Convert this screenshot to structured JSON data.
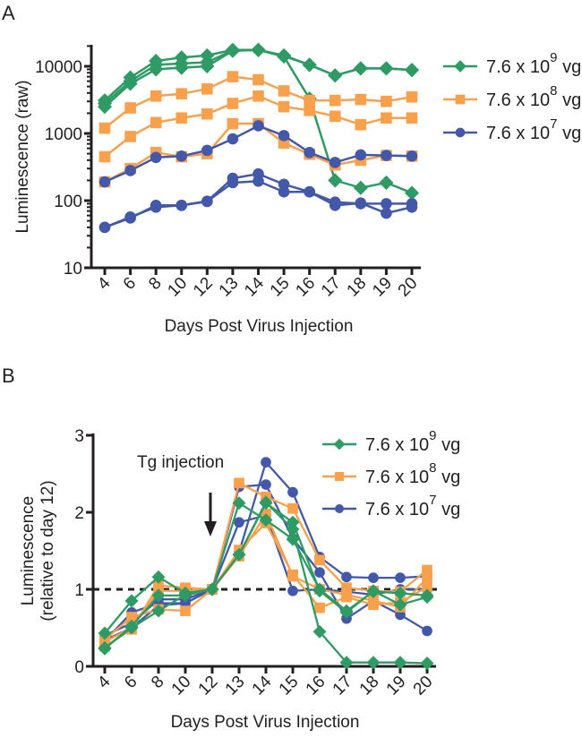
{
  "chart_data": [
    {
      "panel": "A",
      "type": "line",
      "title": "",
      "xlabel": "Days Post Virus Injection",
      "ylabel": "Luminescence (raw)",
      "yscale": "log",
      "ylim": [
        10,
        20000
      ],
      "yticks": [
        10,
        100,
        1000,
        10000
      ],
      "ytick_labels": [
        "10",
        "100",
        "1000",
        "10000"
      ],
      "categories": [
        "4",
        "6",
        "8",
        "10",
        "12",
        "13",
        "14",
        "15",
        "16",
        "17",
        "18",
        "19",
        "20"
      ],
      "legend": {
        "position": "right",
        "entries": [
          {
            "base": "7.6 x 10",
            "exp": "9",
            "unit": "vg",
            "color": "#2e9b64",
            "marker": "diamond"
          },
          {
            "base": "7.6 x 10",
            "exp": "8",
            "unit": "vg",
            "color": "#f9a04c",
            "marker": "square"
          },
          {
            "base": "7.6 x 10",
            "exp": "7",
            "unit": "vg",
            "color": "#4358a8",
            "marker": "circle"
          }
        ]
      },
      "series": [
        {
          "name": "7.6 x 10^9 vg (animal 1)",
          "group": 0,
          "values": [
            3100,
            6800,
            12000,
            13500,
            14500,
            17500,
            17500,
            14000,
            3300,
            200,
            155,
            185,
            130
          ]
        },
        {
          "name": "7.6 x 10^9 vg (animal 2)",
          "group": 0,
          "values": [
            2500,
            5500,
            9000,
            9500,
            10000,
            17000,
            17500,
            14500,
            10500,
            7300,
            9300,
            9300,
            8800
          ]
        },
        {
          "name": "7.6 x 10^9 vg (animal 3)",
          "group": 0,
          "values": [
            2800,
            6000,
            10500,
            11000,
            11500,
            17200,
            17500,
            14200,
            10500,
            7300,
            9300,
            9300,
            8800
          ]
        },
        {
          "name": "7.6 x 10^8 vg (animal 1)",
          "group": 1,
          "values": [
            1200,
            2400,
            3600,
            3900,
            4600,
            7000,
            6300,
            4300,
            3100,
            3100,
            3200,
            3000,
            3500
          ]
        },
        {
          "name": "7.6 x 10^8 vg (animal 2)",
          "group": 1,
          "values": [
            450,
            900,
            1450,
            1700,
            1950,
            2800,
            3600,
            2500,
            2200,
            1800,
            1350,
            1700,
            1700
          ]
        },
        {
          "name": "7.6 x 10^8 vg (animal 3)",
          "group": 1,
          "values": [
            190,
            300,
            520,
            450,
            500,
            1400,
            1400,
            720,
            490,
            340,
            400,
            470,
            460
          ]
        },
        {
          "name": "7.6 x 10^7 vg (animal 1)",
          "group": 2,
          "values": [
            190,
            280,
            440,
            460,
            560,
            830,
            1300,
            930,
            520,
            370,
            480,
            470,
            460
          ]
        },
        {
          "name": "7.6 x 10^7 vg (animal 2)",
          "group": 2,
          "values": [
            40,
            55,
            85,
            85,
            98,
            215,
            250,
            175,
            135,
            95,
            90,
            90,
            90
          ]
        },
        {
          "name": "7.6 x 10^7 vg (animal 3)",
          "group": 2,
          "values": [
            40,
            57,
            80,
            85,
            97,
            185,
            195,
            135,
            135,
            85,
            92,
            65,
            80
          ]
        }
      ]
    },
    {
      "panel": "B",
      "type": "line",
      "title": "",
      "xlabel": "Days Post Virus Injection",
      "ylabel": "Luminescence",
      "ylabel2": "(relative to day 12)",
      "yscale": "linear",
      "ylim": [
        0,
        3
      ],
      "yticks": [
        0,
        1,
        2,
        3
      ],
      "ytick_labels": [
        "0",
        "1",
        "2",
        "3"
      ],
      "reference_line": 1,
      "annotation": {
        "text": "Tg injection",
        "at_category": "12"
      },
      "categories": [
        "4",
        "6",
        "8",
        "10",
        "12",
        "13",
        "14",
        "15",
        "16",
        "17",
        "18",
        "19",
        "20"
      ],
      "legend": {
        "position": "right",
        "entries": [
          {
            "base": "7.6 x 10",
            "exp": "9",
            "unit": "vg",
            "color": "#2e9b64",
            "marker": "diamond"
          },
          {
            "base": "7.6 x 10",
            "exp": "8",
            "unit": "vg",
            "color": "#f9a04c",
            "marker": "square"
          },
          {
            "base": "7.6 x 10",
            "exp": "7",
            "unit": "vg",
            "color": "#4358a8",
            "marker": "circle"
          }
        ]
      },
      "series": [
        {
          "name": "7.6 x 10^7 vg (animal 1)",
          "group": 2,
          "values": [
            0.34,
            0.5,
            0.79,
            0.82,
            1.0,
            1.48,
            2.65,
            2.26,
            1.42,
            1.16,
            1.15,
            1.15,
            1.17
          ]
        },
        {
          "name": "7.6 x 10^7 vg (animal 2)",
          "group": 2,
          "values": [
            0.4,
            0.56,
            0.87,
            0.87,
            1.0,
            2.33,
            2.36,
            1.66,
            1.22,
            0.62,
            0.85,
            0.67,
            0.46
          ]
        },
        {
          "name": "7.6 x 10^7 vg (animal 3)",
          "group": 2,
          "values": [
            0.33,
            0.7,
            0.82,
            0.82,
            1.0,
            1.87,
            1.96,
            0.98,
            1.0,
            0.97,
            0.93,
            1.0,
            1.0
          ]
        },
        {
          "name": "7.6 x 10^8 vg (animal 1)",
          "group": 1,
          "values": [
            0.26,
            0.48,
            1.05,
            1.02,
            1.0,
            2.38,
            2.2,
            2.05,
            1.38,
            1.02,
            0.98,
            0.97,
            1.25
          ]
        },
        {
          "name": "7.6 x 10^8 vg (animal 2)",
          "group": 1,
          "values": [
            0.35,
            0.64,
            0.74,
            0.72,
            1.0,
            1.51,
            1.86,
            1.19,
            0.76,
            0.9,
            0.8,
            0.83,
            1.03
          ]
        },
        {
          "name": "7.6 x 10^8 vg (animal 3)",
          "group": 1,
          "values": [
            0.32,
            0.5,
            0.98,
            0.98,
            1.0,
            1.43,
            1.98,
            1.17,
            1.0,
            0.93,
            0.85,
            0.77,
            1.15
          ]
        },
        {
          "name": "7.6 x 10^9 vg (animal 1)",
          "group": 0,
          "values": [
            0.24,
            0.5,
            0.72,
            0.93,
            1.0,
            1.45,
            2.13,
            1.78,
            0.45,
            0.05,
            0.05,
            0.05,
            0.04
          ]
        },
        {
          "name": "7.6 x 10^9 vg (animal 2)",
          "group": 0,
          "values": [
            0.43,
            0.85,
            1.16,
            0.95,
            1.0,
            2.12,
            1.9,
            1.65,
            1.0,
            0.72,
            0.97,
            0.95,
            0.92
          ]
        },
        {
          "name": "7.6 x 10^9 vg (animal 3)",
          "group": 0,
          "values": [
            0.23,
            0.52,
            0.92,
            0.92,
            1.0,
            1.45,
            2.12,
            1.87,
            0.98,
            0.7,
            0.98,
            0.8,
            0.9
          ]
        }
      ]
    }
  ]
}
